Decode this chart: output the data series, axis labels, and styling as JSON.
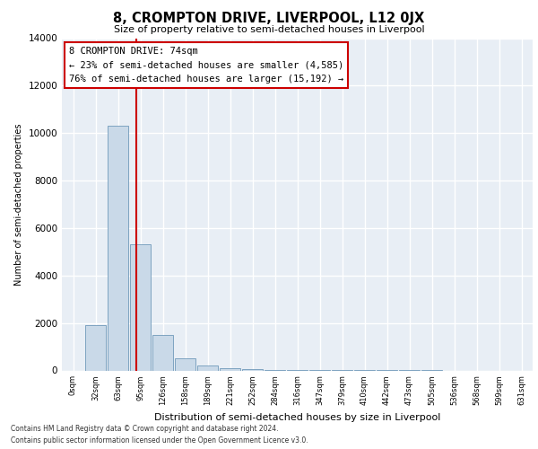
{
  "title": "8, CROMPTON DRIVE, LIVERPOOL, L12 0JX",
  "subtitle": "Size of property relative to semi-detached houses in Liverpool",
  "xlabel": "Distribution of semi-detached houses by size in Liverpool",
  "ylabel": "Number of semi-detached properties",
  "bar_color": "#c9d9e8",
  "bar_edge_color": "#5b8ab0",
  "background_color": "#e8eef5",
  "grid_color": "#ffffff",
  "annotation_box_color": "#ffffff",
  "annotation_box_edge_color": "#cc0000",
  "vline_color": "#cc0000",
  "property_size": 74,
  "property_label": "8 CROMPTON DRIVE: 74sqm",
  "pct_smaller": 23,
  "n_smaller": 4585,
  "pct_larger": 76,
  "n_larger": 15192,
  "categories": [
    "0sqm",
    "32sqm",
    "63sqm",
    "95sqm",
    "126sqm",
    "158sqm",
    "189sqm",
    "221sqm",
    "252sqm",
    "284sqm",
    "316sqm",
    "347sqm",
    "379sqm",
    "410sqm",
    "442sqm",
    "473sqm",
    "505sqm",
    "536sqm",
    "568sqm",
    "599sqm",
    "631sqm"
  ],
  "values": [
    0,
    1900,
    10300,
    5300,
    1500,
    500,
    200,
    100,
    60,
    30,
    10,
    5,
    5,
    3,
    2,
    1,
    1,
    0,
    0,
    0,
    0
  ],
  "ylim": [
    0,
    14000
  ],
  "yticks": [
    0,
    2000,
    4000,
    6000,
    8000,
    10000,
    12000,
    14000
  ],
  "footnote_line1": "Contains HM Land Registry data © Crown copyright and database right 2024.",
  "footnote_line2": "Contains public sector information licensed under the Open Government Licence v3.0."
}
